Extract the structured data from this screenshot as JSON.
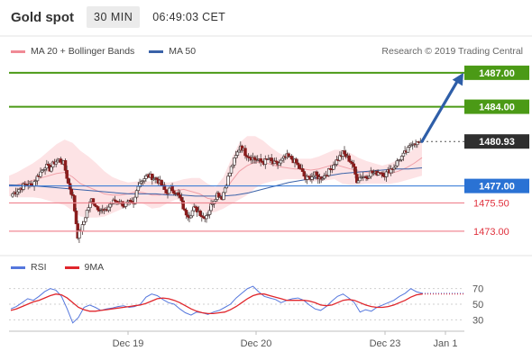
{
  "header": {
    "title": "Gold spot",
    "timeframe": "30 MIN",
    "time": "06:49:03 CET"
  },
  "legend": {
    "bollinger_label": "MA 20 + Bollinger Bands",
    "ma50_label": "MA 50",
    "credit": "Research © 2019 Trading Central"
  },
  "rsi_legend": {
    "rsi_label": "RSI",
    "ma_label": "9MA"
  },
  "colors": {
    "resistance": "#4b9a16",
    "support": "#f08a95",
    "pivot": "#2a72d4",
    "current": "#2f2f2f",
    "ma50": "#3a62a8",
    "bollinger": "#f0a0a8",
    "rsi": "#5577dd",
    "rsi_ma": "#e0262c",
    "arrow": "#2e5ea8"
  },
  "chart_data": [
    {
      "type": "candlestick",
      "title": "Gold spot",
      "timeframe": "30 MIN",
      "ylim": [
        1471.8,
        1488.5
      ],
      "x_tick_labels": [
        "Dec 19",
        "Dec 20",
        "Dec 23",
        "Jan 1"
      ],
      "levels": [
        {
          "value": 1487.0,
          "label": "1487.00",
          "kind": "resistance"
        },
        {
          "value": 1484.0,
          "label": "1484.00",
          "kind": "resistance"
        },
        {
          "value": 1480.93,
          "label": "1480.93",
          "kind": "current"
        },
        {
          "value": 1477.0,
          "label": "1477.00",
          "kind": "pivot"
        },
        {
          "value": 1475.5,
          "label": "1475.50",
          "kind": "support"
        },
        {
          "value": 1473.0,
          "label": "1473.00",
          "kind": "support"
        }
      ],
      "projection": {
        "from": 1480.93,
        "to": 1487.0,
        "direction": "up"
      },
      "close_path": [
        1476.3,
        1476.6,
        1476.9,
        1477.2,
        1477.0,
        1477.6,
        1478.2,
        1478.8,
        1478.5,
        1479.1,
        1479.3,
        1479.0,
        1477.2,
        1476.0,
        1472.6,
        1473.4,
        1474.8,
        1475.8,
        1475.2,
        1474.9,
        1474.7,
        1475.4,
        1475.7,
        1475.6,
        1475.3,
        1475.5,
        1475.3,
        1477.2,
        1477.6,
        1477.9,
        1477.8,
        1477.6,
        1477.1,
        1476.4,
        1476.8,
        1476.5,
        1475.9,
        1474.7,
        1474.4,
        1475.0,
        1474.8,
        1474.2,
        1474.6,
        1475.6,
        1476.3,
        1476.0,
        1477.3,
        1478.6,
        1479.6,
        1480.6,
        1479.9,
        1479.6,
        1479.4,
        1479.2,
        1479.1,
        1479.4,
        1479.0,
        1478.9,
        1479.3,
        1479.6,
        1479.4,
        1479.0,
        1478.4,
        1477.6,
        1477.8,
        1478.0,
        1477.7,
        1477.9,
        1478.3,
        1478.9,
        1479.4,
        1479.9,
        1479.5,
        1479.0,
        1477.5,
        1477.9,
        1477.8,
        1478.2,
        1478.1,
        1478.3,
        1478.0,
        1478.4,
        1478.7,
        1479.3,
        1479.7,
        1480.2,
        1480.9,
        1480.8,
        1480.93
      ],
      "bollinger_mid": [
        1477.0,
        1477.1,
        1477.3,
        1477.5,
        1477.7,
        1477.9,
        1478.1,
        1478.2,
        1477.8,
        1477.2,
        1476.9,
        1476.6,
        1476.3,
        1476.2,
        1476.2,
        1476.3,
        1476.5,
        1476.4,
        1476.2,
        1476.2,
        1476.4,
        1476.6,
        1476.7,
        1476.5,
        1476.3,
        1475.9,
        1475.8,
        1476.4,
        1477.4,
        1478.3,
        1478.8,
        1479.1,
        1479.1,
        1478.9,
        1478.7,
        1478.6,
        1478.5,
        1478.5,
        1478.4,
        1478.5,
        1478.7,
        1478.9,
        1478.7,
        1478.5,
        1478.3,
        1478.2,
        1478.1,
        1478.0,
        1478.1,
        1478.3,
        1478.6,
        1479.0,
        1479.5
      ],
      "bollinger_width": [
        0.9,
        1.1,
        1.3,
        1.5,
        1.8,
        2.2,
        2.6,
        2.9,
        3.0,
        2.9,
        2.7,
        2.4,
        2.0,
        1.6,
        1.3,
        1.0,
        0.9,
        1.0,
        1.2,
        1.1,
        0.9,
        0.8,
        0.9,
        1.2,
        1.4,
        1.3,
        1.1,
        1.4,
        2.0,
        2.5,
        2.6,
        2.3,
        1.9,
        1.5,
        1.2,
        1.0,
        0.9,
        0.9,
        1.0,
        1.1,
        1.2,
        1.3,
        1.5,
        1.4,
        1.2,
        1.0,
        0.9,
        0.8,
        0.9,
        1.0,
        1.1,
        1.3,
        1.6
      ],
      "ma50": [
        1477.1,
        1477.05,
        1477.0,
        1476.9,
        1476.8,
        1476.7,
        1476.6,
        1476.5,
        1476.4,
        1476.3,
        1476.3,
        1476.3,
        1476.2,
        1476.2,
        1476.1,
        1476.1,
        1476.1,
        1476.2,
        1476.4,
        1476.7,
        1477.0,
        1477.3,
        1477.5,
        1477.7,
        1477.9,
        1478.1,
        1478.2,
        1478.3,
        1478.4,
        1478.5,
        1478.5,
        1478.6
      ]
    },
    {
      "type": "line",
      "title": "RSI",
      "ylim": [
        20,
        80
      ],
      "y_ticks": [
        30,
        50,
        70
      ],
      "series": [
        {
          "name": "RSI",
          "values": [
            44,
            47,
            52,
            57,
            55,
            60,
            66,
            70,
            68,
            60,
            44,
            26,
            33,
            46,
            49,
            46,
            42,
            44,
            45,
            47,
            48,
            46,
            47,
            50,
            59,
            63,
            61,
            56,
            52,
            50,
            44,
            39,
            36,
            40,
            39,
            37,
            40,
            42,
            46,
            50,
            58,
            64,
            70,
            73,
            66,
            60,
            58,
            56,
            52,
            55,
            57,
            58,
            55,
            49,
            44,
            42,
            47,
            54,
            60,
            63,
            58,
            52,
            40,
            43,
            41,
            46,
            49,
            52,
            55,
            60,
            64,
            70,
            66,
            64
          ]
        },
        {
          "name": "9MA",
          "values": [
            42,
            44,
            47,
            50,
            53,
            55,
            58,
            61,
            63,
            62,
            58,
            52,
            46,
            43,
            41,
            41,
            42,
            43,
            44,
            45,
            46,
            47,
            48,
            49,
            51,
            54,
            57,
            58,
            57,
            55,
            52,
            48,
            44,
            41,
            39,
            38,
            38,
            39,
            40,
            43,
            47,
            52,
            57,
            61,
            63,
            63,
            61,
            59,
            57,
            55,
            55,
            55,
            55,
            54,
            52,
            49,
            48,
            49,
            52,
            55,
            56,
            55,
            52,
            49,
            47,
            46,
            46,
            47,
            49,
            52,
            55,
            59,
            62,
            63
          ]
        }
      ]
    }
  ]
}
